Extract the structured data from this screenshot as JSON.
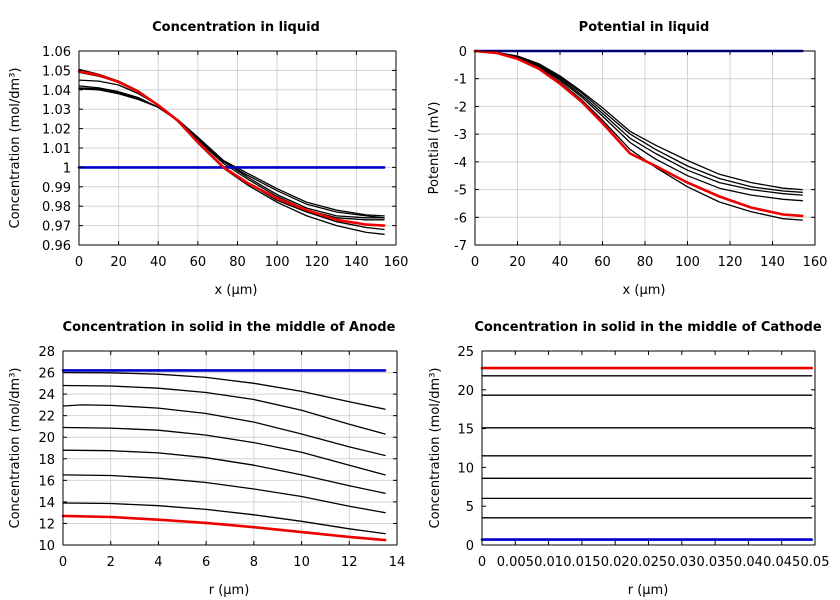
{
  "chart_data": [
    {
      "type": "line",
      "title": "Concentration in liquid",
      "xlabel": "x (µm)",
      "ylabel": "Concentration (mol/dm³)",
      "xlim": [
        0,
        160
      ],
      "ylim": [
        0.96,
        1.06
      ],
      "xticks": [
        0,
        20,
        40,
        60,
        80,
        100,
        120,
        140,
        160
      ],
      "yticks": [
        0.96,
        0.97,
        0.98,
        0.99,
        1.0,
        1.01,
        1.02,
        1.03,
        1.04,
        1.05,
        1.06
      ],
      "xticklabels": [
        "0",
        "20",
        "40",
        "60",
        "80",
        "100",
        "120",
        "140",
        "160"
      ],
      "yticklabels": [
        "0.96",
        "0.97",
        "0.98",
        "0.99",
        "1",
        "1.01",
        "1.02",
        "1.03",
        "1.04",
        "1.05",
        "1.06"
      ],
      "grid": true,
      "series": [
        {
          "color": "#000000",
          "width": 1.3,
          "x": [
            0,
            10,
            20,
            30,
            40,
            50,
            60,
            73,
            85,
            100,
            115,
            130,
            145,
            154
          ],
          "y": [
            1.045,
            1.0445,
            1.0425,
            1.038,
            1.032,
            1.024,
            1.014,
            1.002,
            0.994,
            0.985,
            0.978,
            0.974,
            0.973,
            0.973
          ]
        },
        {
          "color": "#000000",
          "width": 1.3,
          "x": [
            0,
            10,
            20,
            30,
            40,
            50,
            60,
            73,
            85,
            100,
            115,
            130,
            145,
            154
          ],
          "y": [
            1.042,
            1.041,
            1.039,
            1.036,
            1.031,
            1.024,
            1.014,
            1.003,
            0.995,
            0.986,
            0.979,
            0.975,
            0.974,
            0.974
          ]
        },
        {
          "color": "#000000",
          "width": 1.3,
          "x": [
            0,
            10,
            20,
            30,
            40,
            50,
            60,
            73,
            85,
            100,
            115,
            130,
            145,
            154
          ],
          "y": [
            1.041,
            1.0405,
            1.0385,
            1.0355,
            1.031,
            1.024,
            1.015,
            1.003,
            0.996,
            0.988,
            0.981,
            0.977,
            0.975,
            0.974
          ]
        },
        {
          "color": "#000000",
          "width": 1.3,
          "x": [
            0,
            10,
            20,
            30,
            40,
            50,
            60,
            73,
            85,
            100,
            115,
            130,
            145,
            154
          ],
          "y": [
            1.0405,
            1.04,
            1.038,
            1.035,
            1.031,
            1.0245,
            1.0155,
            1.0035,
            0.997,
            0.989,
            0.982,
            0.978,
            0.9755,
            0.975
          ]
        },
        {
          "color": "#000000",
          "width": 1.3,
          "x": [
            0,
            10,
            20,
            30,
            40,
            50,
            60,
            73,
            85,
            100,
            115,
            130,
            145,
            154
          ],
          "y": [
            1.049,
            1.047,
            1.044,
            1.039,
            1.032,
            1.024,
            1.013,
            1.0,
            0.992,
            0.983,
            0.977,
            0.972,
            0.969,
            0.968
          ]
        },
        {
          "color": "#000000",
          "width": 1.3,
          "x": [
            0,
            10,
            20,
            30,
            40,
            50,
            60,
            73,
            85,
            100,
            115,
            130,
            145,
            154
          ],
          "y": [
            1.0505,
            1.048,
            1.0445,
            1.0395,
            1.032,
            1.0235,
            1.0125,
            0.9995,
            0.991,
            0.982,
            0.975,
            0.97,
            0.9665,
            0.9655
          ]
        },
        {
          "color": "#0000cc",
          "width": 2.6,
          "x": [
            0,
            154
          ],
          "y": [
            1.0,
            1.0
          ]
        },
        {
          "color": "#ee0000",
          "width": 2.6,
          "x": [
            0,
            10,
            20,
            30,
            40,
            50,
            60,
            73,
            85,
            100,
            115,
            130,
            145,
            154
          ],
          "y": [
            1.0495,
            1.0475,
            1.044,
            1.039,
            1.032,
            1.024,
            1.013,
            1.0,
            0.992,
            0.984,
            0.978,
            0.973,
            0.9705,
            0.97
          ]
        }
      ]
    },
    {
      "type": "line",
      "title": "Potential in liquid",
      "xlabel": "x (µm)",
      "ylabel": "Potential (mV)",
      "xlim": [
        0,
        160
      ],
      "ylim": [
        -7,
        0
      ],
      "xticks": [
        0,
        20,
        40,
        60,
        80,
        100,
        120,
        140,
        160
      ],
      "yticks": [
        -7,
        -6,
        -5,
        -4,
        -3,
        -2,
        -1,
        0
      ],
      "xticklabels": [
        "0",
        "20",
        "40",
        "60",
        "80",
        "100",
        "120",
        "140",
        "160"
      ],
      "yticklabels": [
        "-7",
        "-6",
        "-5",
        "-4",
        "-3",
        "-2",
        "-1",
        "0"
      ],
      "grid": true,
      "series": [
        {
          "color": "#000000",
          "width": 1.3,
          "x": [
            0,
            10,
            20,
            30,
            40,
            50,
            60,
            73,
            85,
            100,
            115,
            130,
            145,
            154
          ],
          "y": [
            0,
            -0.05,
            -0.2,
            -0.5,
            -0.95,
            -1.5,
            -2.15,
            -3.0,
            -3.55,
            -4.15,
            -4.6,
            -4.9,
            -5.05,
            -5.1
          ]
        },
        {
          "color": "#000000",
          "width": 1.3,
          "x": [
            0,
            10,
            20,
            30,
            40,
            50,
            60,
            73,
            85,
            100,
            115,
            130,
            145,
            154
          ],
          "y": [
            0,
            -0.05,
            -0.22,
            -0.52,
            -1.0,
            -1.58,
            -2.25,
            -3.15,
            -3.7,
            -4.3,
            -4.75,
            -5.0,
            -5.15,
            -5.2
          ]
        },
        {
          "color": "#000000",
          "width": 1.3,
          "x": [
            0,
            10,
            20,
            30,
            40,
            50,
            60,
            73,
            85,
            100,
            115,
            130,
            145,
            154
          ],
          "y": [
            0,
            -0.06,
            -0.24,
            -0.56,
            -1.05,
            -1.65,
            -2.35,
            -3.3,
            -3.9,
            -4.5,
            -4.95,
            -5.2,
            -5.35,
            -5.4
          ]
        },
        {
          "color": "#000000",
          "width": 1.3,
          "x": [
            0,
            10,
            20,
            30,
            40,
            50,
            60,
            73,
            85,
            100,
            115,
            130,
            145,
            154
          ],
          "y": [
            0,
            -0.06,
            -0.26,
            -0.6,
            -1.12,
            -1.75,
            -2.5,
            -3.55,
            -4.2,
            -4.9,
            -5.45,
            -5.8,
            -6.05,
            -6.1
          ]
        },
        {
          "color": "#000000",
          "width": 1.3,
          "x": [
            0,
            10,
            20,
            30,
            40,
            50,
            60,
            73,
            85,
            100,
            115,
            130,
            145,
            154
          ],
          "y": [
            0,
            -0.05,
            -0.18,
            -0.46,
            -0.9,
            -1.45,
            -2.05,
            -2.9,
            -3.4,
            -3.95,
            -4.45,
            -4.75,
            -4.95,
            -5.0
          ]
        },
        {
          "color": "#0000cc",
          "width": 2.6,
          "x": [
            0,
            154
          ],
          "y": [
            0,
            0
          ]
        },
        {
          "color": "#ee0000",
          "width": 2.6,
          "x": [
            0,
            10,
            20,
            30,
            40,
            50,
            60,
            73,
            85,
            100,
            115,
            130,
            145,
            154
          ],
          "y": [
            0,
            -0.07,
            -0.28,
            -0.64,
            -1.18,
            -1.82,
            -2.6,
            -3.7,
            -4.15,
            -4.75,
            -5.25,
            -5.65,
            -5.9,
            -5.95
          ]
        }
      ]
    },
    {
      "type": "line",
      "title": "Concentration in solid in the middle of Anode",
      "xlabel": "r (µm)",
      "ylabel": "Concentration (mol/dm³)",
      "xlim": [
        0,
        14
      ],
      "ylim": [
        10,
        28
      ],
      "xticks": [
        0,
        2,
        4,
        6,
        8,
        10,
        12,
        14
      ],
      "yticks": [
        10,
        12,
        14,
        16,
        18,
        20,
        22,
        24,
        26,
        28
      ],
      "xticklabels": [
        "0",
        "2",
        "4",
        "6",
        "8",
        "10",
        "12",
        "14"
      ],
      "yticklabels": [
        "10",
        "12",
        "14",
        "16",
        "18",
        "20",
        "22",
        "24",
        "26",
        "28"
      ],
      "grid": true,
      "series": [
        {
          "color": "#000000",
          "width": 1.3,
          "x": [
            0,
            2,
            4,
            6,
            8,
            10,
            12,
            13.5
          ],
          "y": [
            26.0,
            25.98,
            25.85,
            25.55,
            25.0,
            24.25,
            23.3,
            22.6
          ]
        },
        {
          "color": "#000000",
          "width": 1.3,
          "x": [
            0,
            2,
            4,
            6,
            8,
            10,
            12,
            13.5
          ],
          "y": [
            24.8,
            24.75,
            24.55,
            24.15,
            23.5,
            22.5,
            21.2,
            20.3
          ]
        },
        {
          "color": "#000000",
          "width": 1.3,
          "x": [
            0,
            0.8,
            2,
            4,
            6,
            8,
            10,
            12,
            13.5
          ],
          "y": [
            22.9,
            23.0,
            22.95,
            22.7,
            22.2,
            21.4,
            20.3,
            19.1,
            18.3
          ]
        },
        {
          "color": "#000000",
          "width": 1.3,
          "x": [
            0,
            2,
            4,
            6,
            8,
            10,
            12,
            13.5
          ],
          "y": [
            20.9,
            20.85,
            20.65,
            20.2,
            19.5,
            18.6,
            17.4,
            16.5
          ]
        },
        {
          "color": "#000000",
          "width": 1.3,
          "x": [
            0,
            2,
            4,
            6,
            8,
            10,
            12,
            13.5
          ],
          "y": [
            18.8,
            18.75,
            18.55,
            18.1,
            17.4,
            16.5,
            15.5,
            14.8
          ]
        },
        {
          "color": "#000000",
          "width": 1.3,
          "x": [
            0,
            2,
            4,
            6,
            8,
            10,
            12,
            13.5
          ],
          "y": [
            16.5,
            16.45,
            16.2,
            15.8,
            15.2,
            14.5,
            13.6,
            13.0
          ]
        },
        {
          "color": "#000000",
          "width": 1.3,
          "x": [
            0,
            2,
            4,
            6,
            8,
            10,
            12,
            13.5
          ],
          "y": [
            13.9,
            13.85,
            13.65,
            13.3,
            12.8,
            12.2,
            11.5,
            11.05
          ]
        },
        {
          "color": "#0000cc",
          "width": 2.6,
          "x": [
            0,
            13.5
          ],
          "y": [
            26.2,
            26.2
          ]
        },
        {
          "color": "#ee0000",
          "width": 2.6,
          "x": [
            0,
            2,
            4,
            6,
            8,
            10,
            12,
            13.5
          ],
          "y": [
            12.7,
            12.6,
            12.35,
            12.05,
            11.65,
            11.2,
            10.75,
            10.45
          ]
        }
      ]
    },
    {
      "type": "line",
      "title": "Concentration in solid in the middle of Cathode",
      "xlabel": "r (µm)",
      "ylabel": "Concentration (mol/dm³)",
      "xlim": [
        0,
        0.05
      ],
      "ylim": [
        0,
        25
      ],
      "xticks": [
        0,
        0.005,
        0.01,
        0.015,
        0.02,
        0.025,
        0.03,
        0.035,
        0.04,
        0.045,
        0.05
      ],
      "yticks": [
        0,
        5,
        10,
        15,
        20,
        25
      ],
      "xticklabels": [
        "0",
        "0.005",
        "0.01",
        "0.015",
        "0.02",
        "0.025",
        "0.03",
        "0.035",
        "0.04",
        "0.045",
        "0.05"
      ],
      "yticklabels": [
        "0",
        "5",
        "10",
        "15",
        "20",
        "25"
      ],
      "grid": false,
      "series": [
        {
          "color": "#000000",
          "width": 1.3,
          "x": [
            0,
            0.0495
          ],
          "y": [
            21.8,
            21.8
          ]
        },
        {
          "color": "#000000",
          "width": 1.3,
          "x": [
            0,
            0.0495
          ],
          "y": [
            19.3,
            19.3
          ]
        },
        {
          "color": "#000000",
          "width": 1.3,
          "x": [
            0,
            0.0495
          ],
          "y": [
            15.1,
            15.1
          ]
        },
        {
          "color": "#000000",
          "width": 1.3,
          "x": [
            0,
            0.0495
          ],
          "y": [
            11.5,
            11.5
          ]
        },
        {
          "color": "#000000",
          "width": 1.3,
          "x": [
            0,
            0.0495
          ],
          "y": [
            8.6,
            8.6
          ]
        },
        {
          "color": "#000000",
          "width": 1.3,
          "x": [
            0,
            0.0495
          ],
          "y": [
            6.0,
            6.0
          ]
        },
        {
          "color": "#000000",
          "width": 1.3,
          "x": [
            0,
            0.0495
          ],
          "y": [
            3.5,
            3.5
          ]
        },
        {
          "color": "#0000cc",
          "width": 2.6,
          "x": [
            0,
            0.0495
          ],
          "y": [
            0.7,
            0.7
          ]
        },
        {
          "color": "#ee0000",
          "width": 2.6,
          "x": [
            0,
            0.0495
          ],
          "y": [
            22.8,
            22.8
          ]
        }
      ]
    }
  ]
}
